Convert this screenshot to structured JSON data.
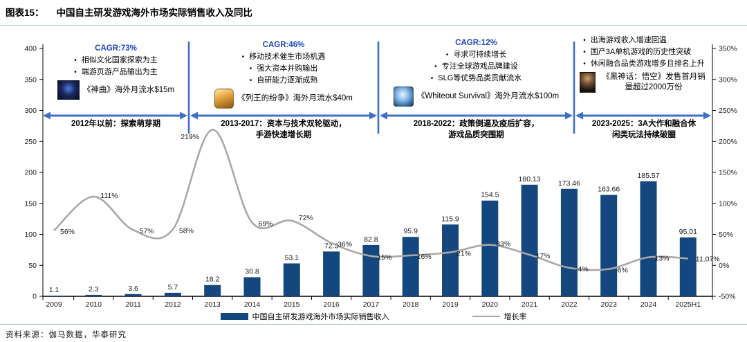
{
  "header": {
    "figure_tag": "图表15：",
    "title": "中国自主研发游戏海外市场实际销售收入及同比"
  },
  "source": "资料来源：伽马数据，华泰研究",
  "legend": {
    "bar_label": "中国自主研发游戏海外市场实际销售收入",
    "line_label": "增长率"
  },
  "colors": {
    "bar": "#14477D",
    "line": "#A8A8A8",
    "arrow_blue": "#3E6FC6",
    "cagr_text": "#1D45C1",
    "rule_blue": "#9CC2E5",
    "label_text": "#1a1a1a"
  },
  "chart_data": {
    "type": "bar+line",
    "title": "中国自主研发游戏海外市场实际销售收入及同比",
    "categories": [
      "2009",
      "2010",
      "2011",
      "2012",
      "2013",
      "2014",
      "2015",
      "2016",
      "2017",
      "2018",
      "2019",
      "2020",
      "2021",
      "2022",
      "2023",
      "2024",
      "2025H1"
    ],
    "series": [
      {
        "name": "中国自主研发游戏海外市场实际销售收入",
        "type": "bar",
        "axis": "left",
        "values": [
          1.1,
          2.3,
          3.6,
          5.7,
          18.2,
          30.8,
          53.1,
          72.3,
          82.8,
          95.9,
          115.9,
          154.5,
          180.13,
          173.46,
          163.66,
          185.57,
          95.01
        ],
        "value_labels": [
          "1.1",
          "2.3",
          "3.6",
          "5.7",
          "18.2",
          "30.8",
          "53.1",
          "72.3",
          "82.8",
          "95.9",
          "115.9",
          "154.5",
          "180.13",
          "173.46",
          "163.66",
          "185.57",
          "95.01"
        ]
      },
      {
        "name": "增长率",
        "type": "line",
        "axis": "right",
        "values": [
          56,
          111,
          57,
          58,
          219,
          69,
          72,
          36,
          15,
          16,
          21,
          33,
          17,
          -4,
          -6,
          13,
          11.07
        ],
        "value_labels": [
          "56%",
          "111%",
          "57%",
          "58%",
          "219%",
          "69%",
          "72%",
          "36%",
          "15%",
          "16%",
          "21%",
          "33%",
          "17%",
          "-4%",
          "-6%",
          "13%",
          "11.07%"
        ]
      }
    ],
    "left_axis": {
      "min": 0,
      "max": 400,
      "step": 50,
      "ticks": [
        "0",
        "50",
        "100",
        "150",
        "200",
        "250",
        "300",
        "350",
        "400"
      ]
    },
    "right_axis": {
      "min": -50,
      "max": 350,
      "step": 50,
      "ticks": [
        "-50%",
        "0%",
        "50%",
        "100%",
        "150%",
        "200%",
        "250%",
        "300%",
        "350%"
      ]
    },
    "grid": false,
    "legend_position": "bottom"
  },
  "annotations": [
    {
      "cagr": "CAGR:73%",
      "bullets": [
        "相似文化国家探索为主",
        "端游页游产品输出为主"
      ],
      "highlight": "《神曲》海外月流水$15m",
      "icon": "shenqu-game-icon",
      "period_lines": [
        "2012年以前：探索萌芽期"
      ]
    },
    {
      "cagr": "CAGR:46%",
      "bullets": [
        "移动技术催生市场机遇",
        "强大资本并购输出",
        "自研能力逐渐成熟"
      ],
      "highlight": "《列王的纷争》海外月流水$40m",
      "icon": "clash-of-kings-game-icon",
      "period_lines": [
        "2013-2017：资本与技术双轮驱动，",
        "手游快速增长期"
      ]
    },
    {
      "cagr": "CAGR:12%",
      "bullets": [
        "寻求可持续增长",
        "专注全球游戏品牌建设",
        "SLG等优势品类贡献流水"
      ],
      "highlight": "《Whiteout Survival》海外月流水$100m",
      "icon": "whiteout-survival-game-icon",
      "period_lines": [
        "2018-2022：政策倒逼及疫后扩容，",
        "游戏品质突围期"
      ]
    },
    {
      "cagr": null,
      "bullets": [
        "出海游戏收入增速回温",
        "国产3A单机游戏的历史性突破",
        "休闲融合品类游戏增多且排名上升"
      ],
      "highlight": "《黑神话：悟空》发售首月销量超过2000万份",
      "icon": "black-myth-wukong-game-icon",
      "period_lines": [
        "2023-2025：3A大作和融合休",
        "闲类玩法持续破圈"
      ]
    }
  ]
}
